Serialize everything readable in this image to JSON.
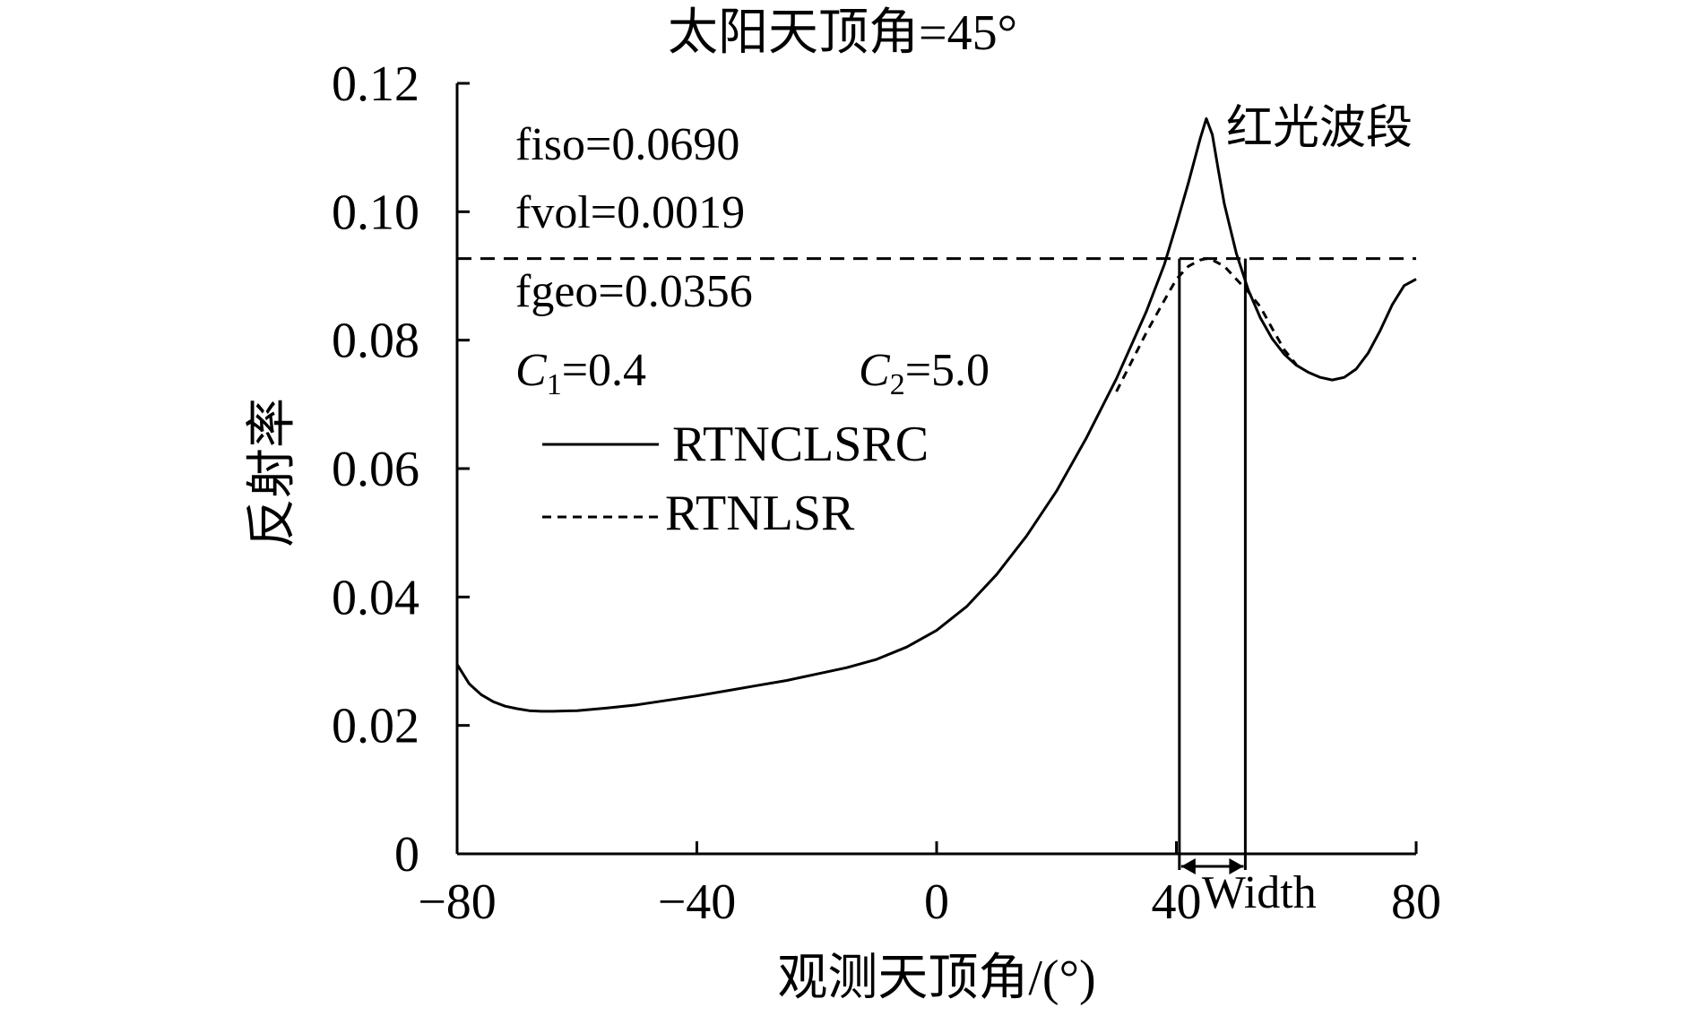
{
  "chart_data": {
    "type": "line",
    "title": "太阳天顶角=45°",
    "xlabel": "观测天顶角/(°)",
    "ylabel": "反射率",
    "xlim": [
      -80,
      80
    ],
    "ylim": [
      0,
      0.12
    ],
    "x_ticks": [
      "−80",
      "−40",
      "0",
      "40",
      "80"
    ],
    "x_tick_values": [
      -80,
      -40,
      0,
      40,
      80
    ],
    "y_ticks": [
      "0",
      "0.02",
      "0.04",
      "0.06",
      "0.08",
      "0.10",
      "0.12"
    ],
    "y_tick_values": [
      0,
      0.02,
      0.04,
      0.06,
      0.08,
      0.1,
      0.12
    ],
    "grid": false,
    "band_label": "红光波段",
    "params": {
      "fiso": "fiso=0.0690",
      "fvol": "fvol=0.0019",
      "fgeo": "fgeo=0.0356",
      "c1_letter": "C",
      "c1_sub": "1",
      "c1_value": "=0.4",
      "c2_letter": "C",
      "c2_sub": "2",
      "c2_value": "=5.0"
    },
    "legend_position": "upper-left",
    "series": [
      {
        "name": "RTNCLSRC",
        "style": "solid",
        "x": [
          -80,
          -78,
          -76,
          -74,
          -72,
          -70,
          -68,
          -66,
          -64,
          -60,
          -55,
          -50,
          -45,
          -40,
          -35,
          -30,
          -25,
          -20,
          -15,
          -10,
          -5,
          0,
          5,
          10,
          15,
          20,
          25,
          30,
          35,
          38,
          40,
          42,
          44,
          45,
          46,
          47,
          48,
          50,
          52,
          54,
          56,
          58,
          60,
          62,
          64,
          66,
          68,
          70,
          72,
          74,
          76,
          78,
          80
        ],
        "y": [
          0.0295,
          0.0265,
          0.0248,
          0.0237,
          0.023,
          0.0226,
          0.0223,
          0.0222,
          0.0222,
          0.0223,
          0.0227,
          0.0232,
          0.0239,
          0.0246,
          0.0254,
          0.0262,
          0.027,
          0.028,
          0.029,
          0.0303,
          0.0322,
          0.0348,
          0.0385,
          0.0435,
          0.0495,
          0.0565,
          0.0648,
          0.074,
          0.0845,
          0.0918,
          0.098,
          0.1045,
          0.1115,
          0.1145,
          0.112,
          0.1065,
          0.1012,
          0.0935,
          0.0878,
          0.0835,
          0.0802,
          0.0778,
          0.0761,
          0.075,
          0.0742,
          0.0738,
          0.0742,
          0.0755,
          0.078,
          0.0815,
          0.0855,
          0.0885,
          0.0895
        ]
      },
      {
        "name": "RTNLSR",
        "style": "dashed",
        "x": [
          30,
          35,
          38,
          40,
          42,
          44,
          45,
          46,
          48,
          50,
          52,
          54,
          56,
          58,
          60
        ],
        "y": [
          0.072,
          0.0812,
          0.0862,
          0.0895,
          0.0915,
          0.0925,
          0.0927,
          0.0925,
          0.0915,
          0.0895,
          0.0875,
          0.0852,
          0.0818,
          0.0785,
          0.0762
        ]
      }
    ],
    "reference_line": {
      "style": "dashed",
      "y": 0.0927
    },
    "width_marker": {
      "label": "Width",
      "x_start": 40.5,
      "x_end": 51.5
    }
  }
}
